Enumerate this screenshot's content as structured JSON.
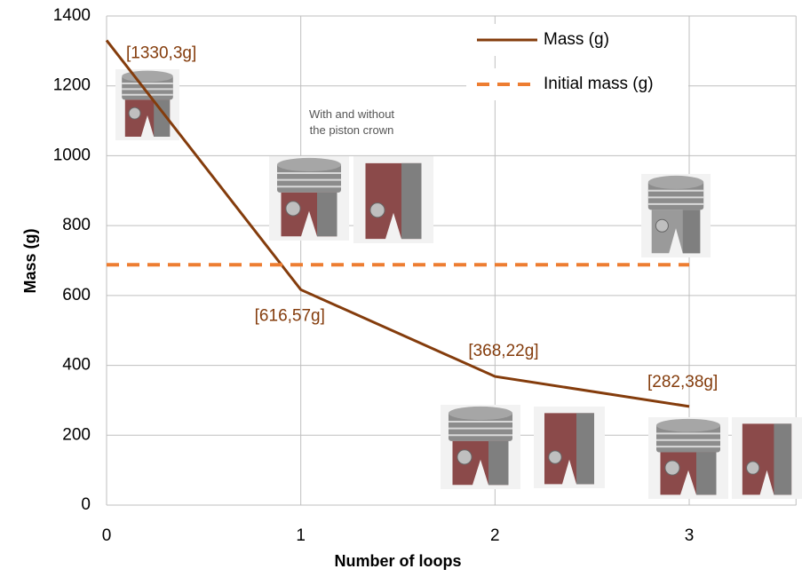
{
  "chart_data": {
    "type": "line",
    "x_label": "Number of loops",
    "y_label": "Mass (g)",
    "x": [
      0,
      1,
      2,
      3
    ],
    "series": [
      {
        "name": "Mass (g)",
        "color": "#843c0c",
        "style": "solid",
        "values": [
          1330.3,
          616.57,
          368.22,
          282.38
        ],
        "value_labels": [
          "[1330,3g]",
          "[616,57g]",
          "[368,22g]",
          "[282,38g]"
        ]
      },
      {
        "name": "Initial mass (g)",
        "color": "#ed7d31",
        "style": "dashed",
        "values": [
          688,
          688,
          688,
          688
        ]
      }
    ],
    "annotation": "With    and    without the piston crown",
    "xlim": [
      0,
      3.55
    ],
    "xticks": [
      0,
      1,
      2,
      3
    ],
    "ylim": [
      0,
      1400
    ],
    "yticks": [
      0,
      200,
      400,
      600,
      800,
      1000,
      1200,
      1400
    ],
    "grid": true,
    "legend": "upper right"
  }
}
